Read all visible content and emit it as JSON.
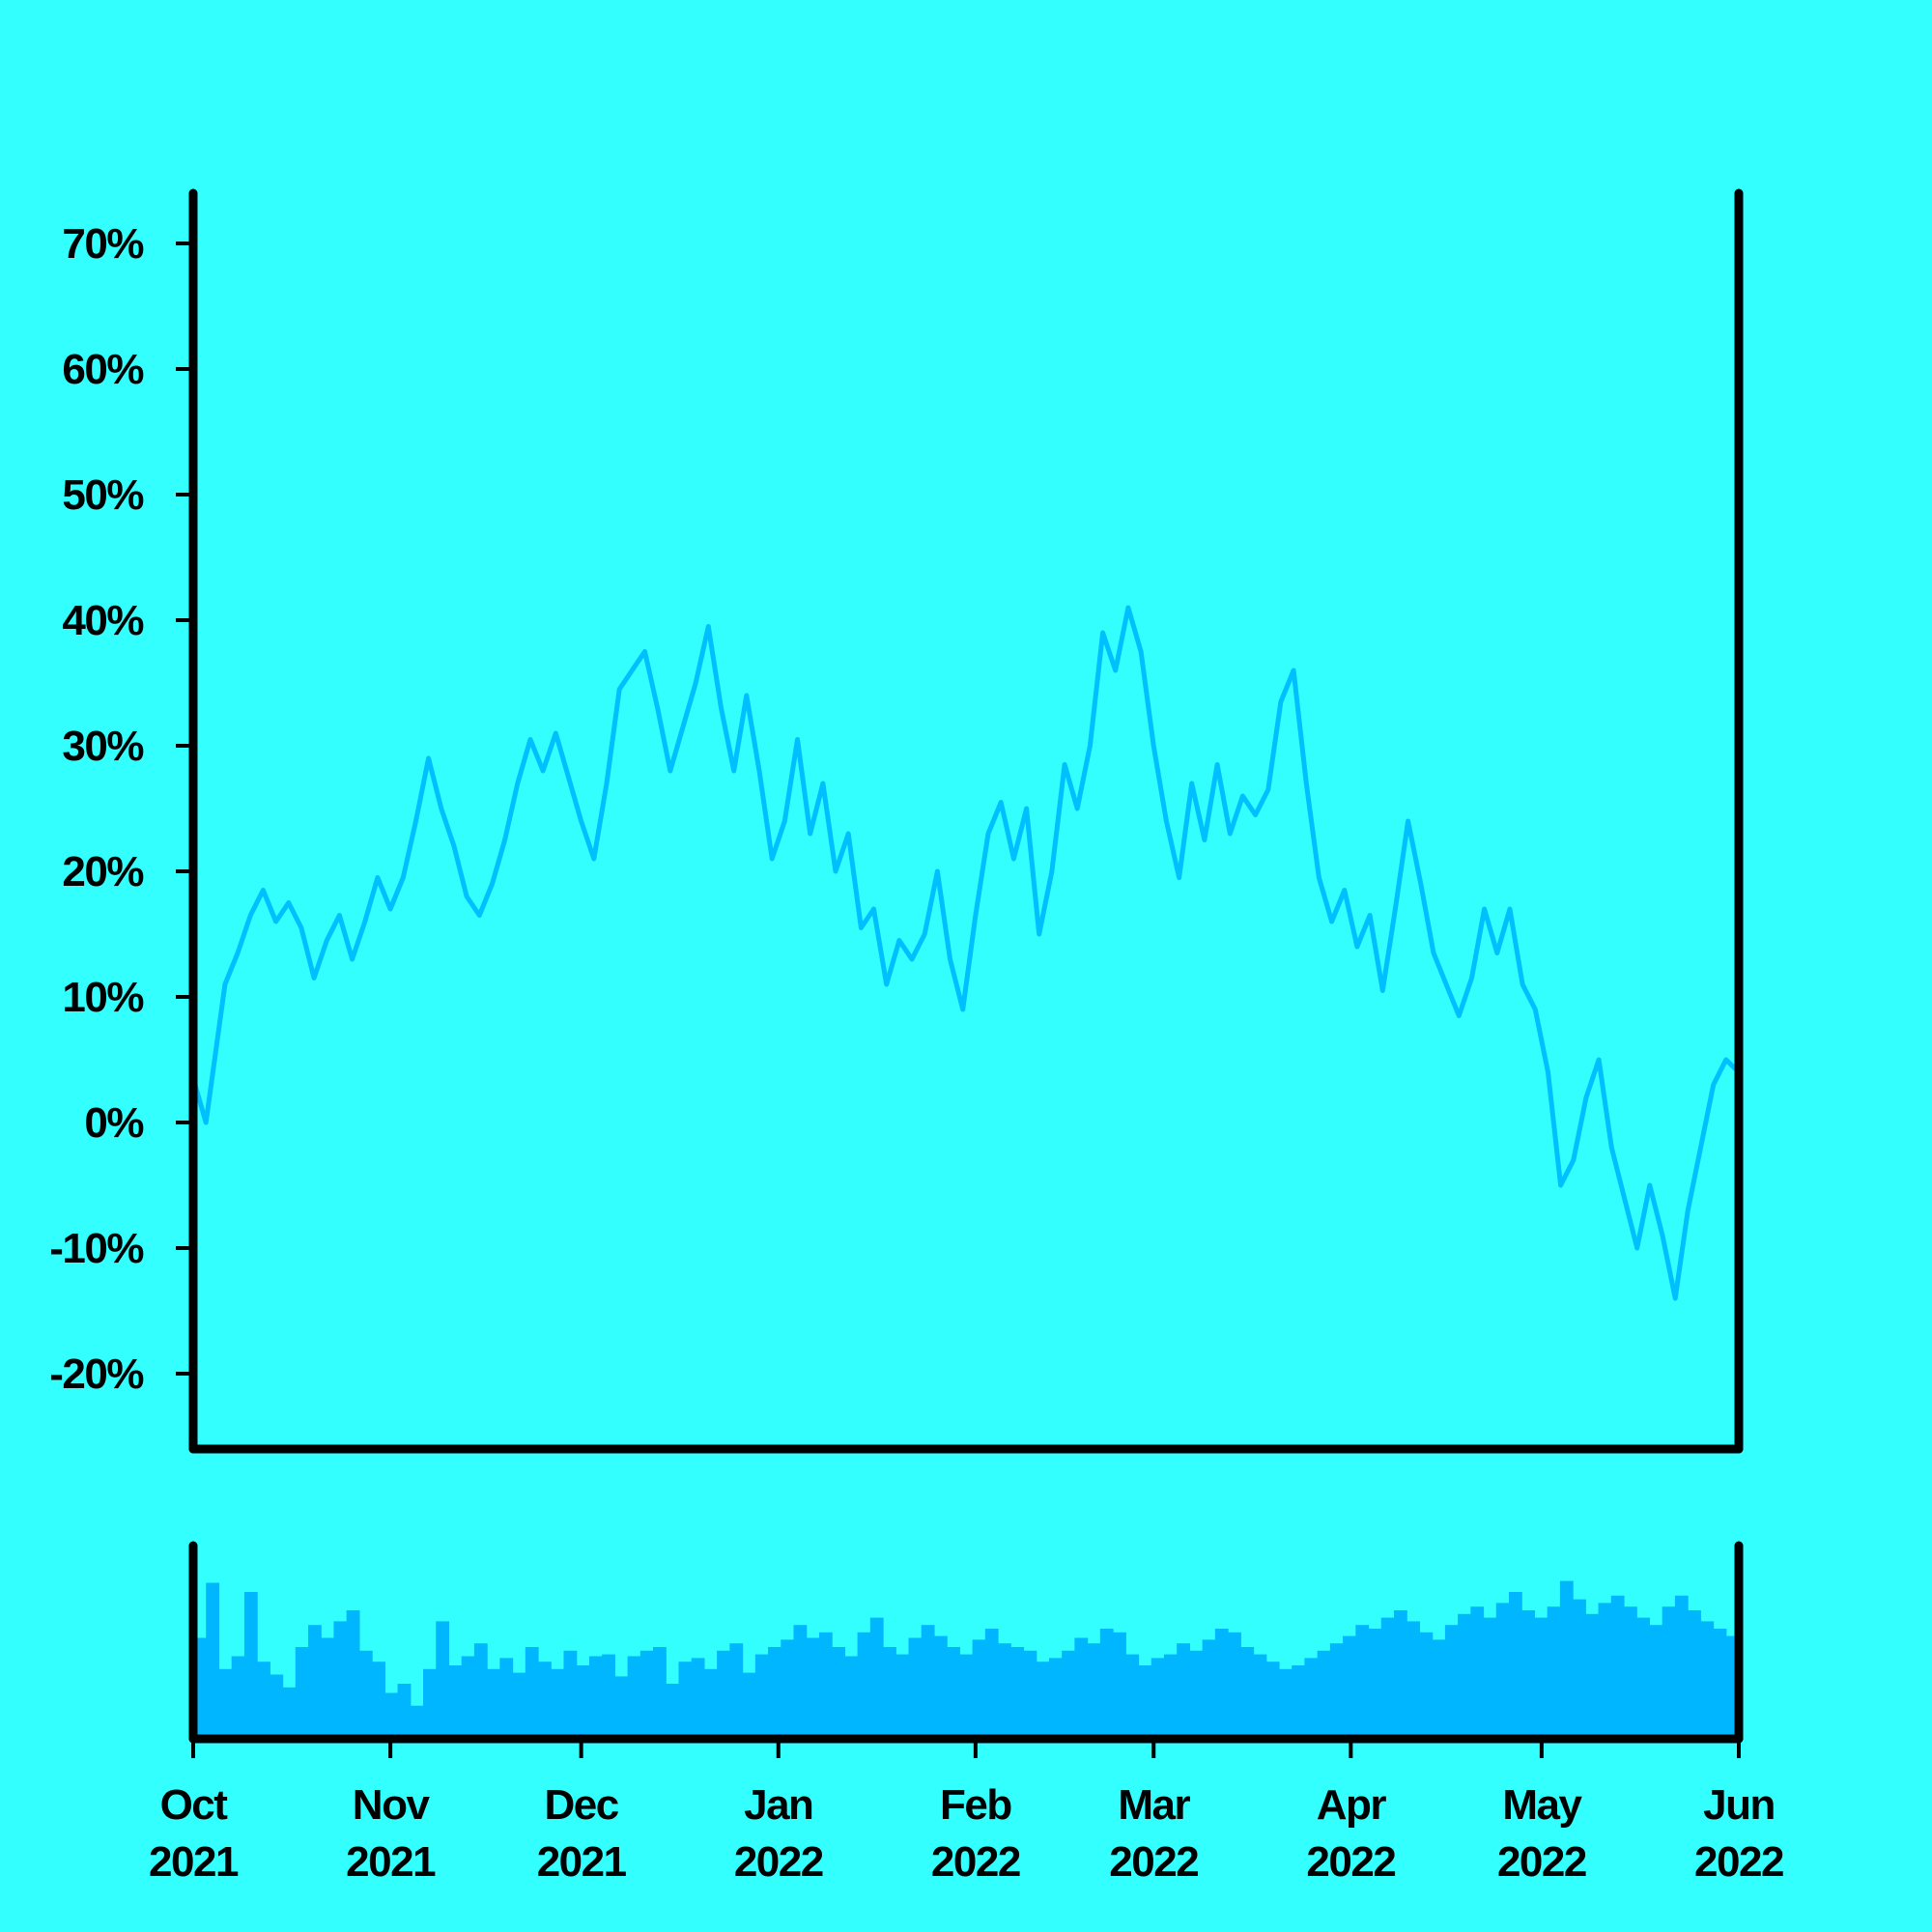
{
  "colors": {
    "background": "#33ffff",
    "line": "#00bfff",
    "volume": "#00b7ff",
    "axis": "#000000"
  },
  "chart_data": [
    {
      "type": "line",
      "panel": "price",
      "title": "",
      "xlabel": "",
      "ylabel": "",
      "x_range": [
        "2021-10-01",
        "2022-06-01"
      ],
      "ylim": [
        -26,
        74
      ],
      "y_ticks": [
        70,
        60,
        50,
        40,
        30,
        20,
        10,
        0,
        -10,
        -20
      ],
      "y_tick_labels": [
        "70%",
        "60%",
        "50%",
        "40%",
        "30%",
        "20%",
        "10%",
        "0%",
        "-10%",
        "-20%"
      ],
      "grid": false,
      "series": [
        {
          "points": [
            [
              "2021-10-01",
              3.5
            ],
            [
              "2021-10-03",
              0.0
            ],
            [
              "2021-10-06",
              11.0
            ],
            [
              "2021-10-08",
              13.5
            ],
            [
              "2021-10-10",
              16.5
            ],
            [
              "2021-10-12",
              18.5
            ],
            [
              "2021-10-14",
              16.0
            ],
            [
              "2021-10-16",
              17.5
            ],
            [
              "2021-10-18",
              15.5
            ],
            [
              "2021-10-20",
              11.5
            ],
            [
              "2021-10-22",
              14.5
            ],
            [
              "2021-10-24",
              16.5
            ],
            [
              "2021-10-26",
              13.0
            ],
            [
              "2021-10-28",
              16.0
            ],
            [
              "2021-10-30",
              19.5
            ],
            [
              "2021-11-01",
              17.0
            ],
            [
              "2021-11-03",
              19.5
            ],
            [
              "2021-11-05",
              24.0
            ],
            [
              "2021-11-07",
              29.0
            ],
            [
              "2021-11-09",
              25.0
            ],
            [
              "2021-11-11",
              22.0
            ],
            [
              "2021-11-13",
              18.0
            ],
            [
              "2021-11-15",
              16.5
            ],
            [
              "2021-11-17",
              19.0
            ],
            [
              "2021-11-19",
              22.5
            ],
            [
              "2021-11-21",
              27.0
            ],
            [
              "2021-11-23",
              30.5
            ],
            [
              "2021-11-25",
              28.0
            ],
            [
              "2021-11-27",
              31.0
            ],
            [
              "2021-11-29",
              27.5
            ],
            [
              "2021-12-01",
              24.0
            ],
            [
              "2021-12-03",
              21.0
            ],
            [
              "2021-12-05",
              27.0
            ],
            [
              "2021-12-07",
              34.5
            ],
            [
              "2021-12-09",
              36.0
            ],
            [
              "2021-12-11",
              37.5
            ],
            [
              "2021-12-13",
              33.0
            ],
            [
              "2021-12-15",
              28.0
            ],
            [
              "2021-12-17",
              31.5
            ],
            [
              "2021-12-19",
              35.0
            ],
            [
              "2021-12-21",
              39.5
            ],
            [
              "2021-12-23",
              33.0
            ],
            [
              "2021-12-25",
              28.0
            ],
            [
              "2021-12-27",
              34.0
            ],
            [
              "2021-12-29",
              28.0
            ],
            [
              "2021-12-31",
              21.0
            ],
            [
              "2022-01-02",
              24.0
            ],
            [
              "2022-01-04",
              30.5
            ],
            [
              "2022-01-06",
              23.0
            ],
            [
              "2022-01-08",
              27.0
            ],
            [
              "2022-01-10",
              20.0
            ],
            [
              "2022-01-12",
              23.0
            ],
            [
              "2022-01-14",
              15.5
            ],
            [
              "2022-01-16",
              17.0
            ],
            [
              "2022-01-18",
              11.0
            ],
            [
              "2022-01-20",
              14.5
            ],
            [
              "2022-01-22",
              13.0
            ],
            [
              "2022-01-24",
              15.0
            ],
            [
              "2022-01-26",
              20.0
            ],
            [
              "2022-01-28",
              13.0
            ],
            [
              "2022-01-30",
              9.0
            ],
            [
              "2022-02-01",
              16.5
            ],
            [
              "2022-02-03",
              23.0
            ],
            [
              "2022-02-05",
              25.5
            ],
            [
              "2022-02-07",
              21.0
            ],
            [
              "2022-02-09",
              25.0
            ],
            [
              "2022-02-11",
              15.0
            ],
            [
              "2022-02-13",
              20.0
            ],
            [
              "2022-02-15",
              28.5
            ],
            [
              "2022-02-17",
              25.0
            ],
            [
              "2022-02-19",
              30.0
            ],
            [
              "2022-02-21",
              39.0
            ],
            [
              "2022-02-23",
              36.0
            ],
            [
              "2022-02-25",
              41.0
            ],
            [
              "2022-02-27",
              37.5
            ],
            [
              "2022-03-01",
              30.0
            ],
            [
              "2022-03-03",
              24.0
            ],
            [
              "2022-03-05",
              19.5
            ],
            [
              "2022-03-07",
              27.0
            ],
            [
              "2022-03-09",
              22.5
            ],
            [
              "2022-03-11",
              28.5
            ],
            [
              "2022-03-13",
              23.0
            ],
            [
              "2022-03-15",
              26.0
            ],
            [
              "2022-03-17",
              24.5
            ],
            [
              "2022-03-19",
              26.5
            ],
            [
              "2022-03-21",
              33.5
            ],
            [
              "2022-03-23",
              36.0
            ],
            [
              "2022-03-25",
              27.0
            ],
            [
              "2022-03-27",
              19.5
            ],
            [
              "2022-03-29",
              16.0
            ],
            [
              "2022-03-31",
              18.5
            ],
            [
              "2022-04-02",
              14.0
            ],
            [
              "2022-04-04",
              16.5
            ],
            [
              "2022-04-06",
              10.5
            ],
            [
              "2022-04-08",
              17.0
            ],
            [
              "2022-04-10",
              24.0
            ],
            [
              "2022-04-12",
              19.0
            ],
            [
              "2022-04-14",
              13.5
            ],
            [
              "2022-04-16",
              11.0
            ],
            [
              "2022-04-18",
              8.5
            ],
            [
              "2022-04-20",
              11.5
            ],
            [
              "2022-04-22",
              17.0
            ],
            [
              "2022-04-24",
              13.5
            ],
            [
              "2022-04-26",
              17.0
            ],
            [
              "2022-04-28",
              11.0
            ],
            [
              "2022-04-30",
              9.0
            ],
            [
              "2022-05-02",
              4.0
            ],
            [
              "2022-05-04",
              -5.0
            ],
            [
              "2022-05-06",
              -3.0
            ],
            [
              "2022-05-08",
              2.0
            ],
            [
              "2022-05-10",
              5.0
            ],
            [
              "2022-05-12",
              -2.0
            ],
            [
              "2022-05-14",
              -6.0
            ],
            [
              "2022-05-16",
              -10.0
            ],
            [
              "2022-05-18",
              -5.0
            ],
            [
              "2022-05-20",
              -9.0
            ],
            [
              "2022-05-22",
              -14.0
            ],
            [
              "2022-05-24",
              -7.0
            ],
            [
              "2022-05-26",
              -2.0
            ],
            [
              "2022-05-28",
              3.0
            ],
            [
              "2022-05-30",
              5.0
            ],
            [
              "2022-06-01",
              4.0
            ]
          ]
        }
      ]
    },
    {
      "type": "bar",
      "panel": "volume",
      "title": "",
      "xlabel": "",
      "ylabel": "",
      "x_range": [
        "2021-10-01",
        "2022-06-01"
      ],
      "ylim": [
        0,
        1
      ],
      "grid": false,
      "x_ticks": [
        "2021-10-01",
        "2021-11-01",
        "2021-12-01",
        "2022-01-01",
        "2022-02-01",
        "2022-03-01",
        "2022-04-01",
        "2022-05-01",
        "2022-06-01"
      ],
      "x_tick_labels": [
        [
          "Oct",
          "2021"
        ],
        [
          "Nov",
          "2021"
        ],
        [
          "Dec",
          "2021"
        ],
        [
          "Jan",
          "2022"
        ],
        [
          "Feb",
          "2022"
        ],
        [
          "Mar",
          "2022"
        ],
        [
          "Apr",
          "2022"
        ],
        [
          "May",
          "2022"
        ],
        [
          "Jun",
          "2022"
        ]
      ],
      "values": [
        0.55,
        0.85,
        0.38,
        0.45,
        0.8,
        0.42,
        0.35,
        0.28,
        0.5,
        0.62,
        0.55,
        0.64,
        0.7,
        0.48,
        0.42,
        0.25,
        0.3,
        0.18,
        0.38,
        0.64,
        0.4,
        0.45,
        0.52,
        0.38,
        0.44,
        0.36,
        0.5,
        0.42,
        0.38,
        0.48,
        0.4,
        0.45,
        0.46,
        0.34,
        0.45,
        0.48,
        0.5,
        0.3,
        0.42,
        0.44,
        0.38,
        0.48,
        0.52,
        0.36,
        0.46,
        0.5,
        0.54,
        0.62,
        0.55,
        0.58,
        0.5,
        0.45,
        0.58,
        0.66,
        0.5,
        0.46,
        0.55,
        0.62,
        0.56,
        0.5,
        0.46,
        0.54,
        0.6,
        0.52,
        0.5,
        0.48,
        0.42,
        0.44,
        0.48,
        0.55,
        0.52,
        0.6,
        0.58,
        0.46,
        0.4,
        0.44,
        0.46,
        0.52,
        0.48,
        0.54,
        0.6,
        0.58,
        0.5,
        0.46,
        0.42,
        0.38,
        0.4,
        0.44,
        0.48,
        0.52,
        0.56,
        0.62,
        0.6,
        0.66,
        0.7,
        0.64,
        0.58,
        0.54,
        0.62,
        0.68,
        0.72,
        0.66,
        0.74,
        0.8,
        0.7,
        0.66,
        0.72,
        0.86,
        0.76,
        0.68,
        0.74,
        0.78,
        0.72,
        0.66,
        0.62,
        0.72,
        0.78,
        0.7,
        0.64,
        0.6,
        0.56
      ],
      "bar_color": "#00b7ff"
    }
  ]
}
